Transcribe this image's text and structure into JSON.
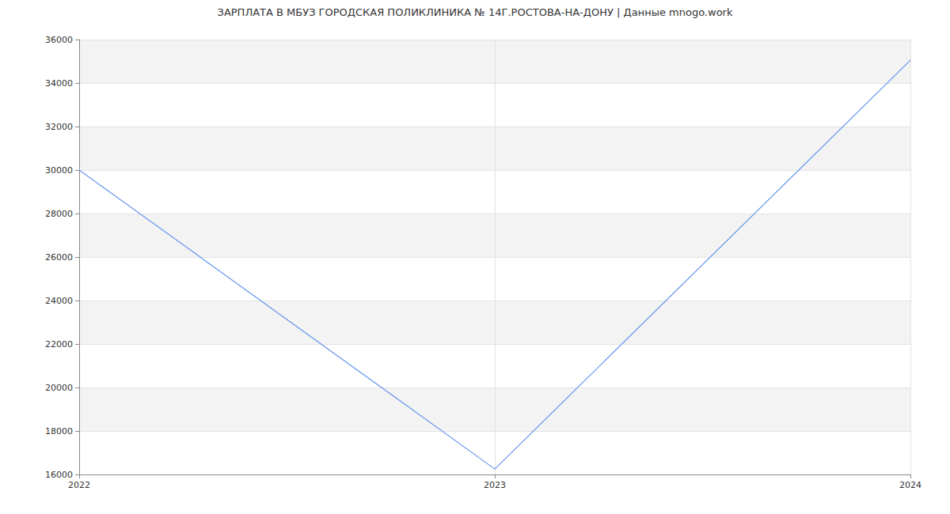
{
  "chart_data": {
    "type": "line",
    "title": "ЗАРПЛАТА В МБУЗ ГОРОДСКАЯ ПОЛИКЛИНИКА № 14Г.РОСТОВА-НА-ДОНУ | Данные mnogo.work",
    "categories": [
      "2022",
      "2023",
      "2024"
    ],
    "values": [
      30000,
      16250,
      35050
    ],
    "color": "#6495ed",
    "ylim": [
      16000,
      36000
    ],
    "yticks": [
      16000,
      18000,
      20000,
      22000,
      24000,
      26000,
      28000,
      30000,
      32000,
      34000,
      36000
    ],
    "grid": true
  }
}
